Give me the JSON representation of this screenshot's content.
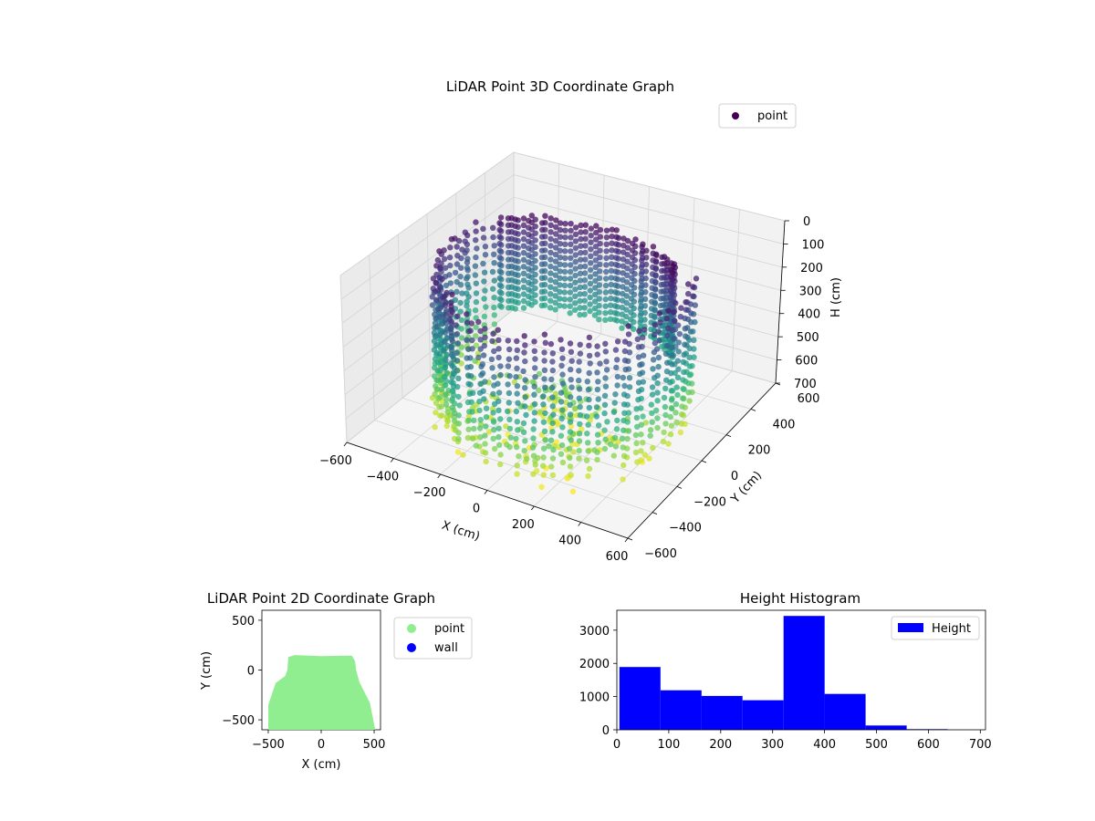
{
  "chart_data": [
    {
      "type": "scatter3d",
      "title": "LiDAR Point 3D Coordinate Graph",
      "xlabel": "X (cm)",
      "ylabel": "Y (cm)",
      "zlabel": "H (cm)",
      "xlim": [
        -600,
        600
      ],
      "ylim": [
        -600,
        600
      ],
      "zlim": [
        0,
        700
      ],
      "z_axis_inverted": true,
      "xticks": [
        "−600",
        "−400",
        "−200",
        "0",
        "200",
        "400",
        "600"
      ],
      "yticks": [
        "−600",
        "−400",
        "−200",
        "0",
        "200",
        "400",
        "600"
      ],
      "zticks": [
        "0",
        "100",
        "200",
        "300",
        "400",
        "500",
        "600",
        "700"
      ],
      "colormap": "viridis",
      "legend": {
        "label": "point",
        "position": "top-right",
        "marker_color": "#440154"
      },
      "grid": true,
      "description_of_points": "dense cylindrical/horseshoe shell of points: vertical columns along a ring of radius ~500 cm, heights 0-700 cm, colored by height"
    },
    {
      "type": "scatter",
      "title": "LiDAR Point 2D Coordinate Graph",
      "xlabel": "X (cm)",
      "ylabel": "Y (cm)",
      "xlim": [
        -560,
        560
      ],
      "ylim": [
        -600,
        600
      ],
      "xticks": [
        "−500",
        "0",
        "500"
      ],
      "yticks": [
        "−500",
        "0",
        "500"
      ],
      "series": [
        {
          "name": "point",
          "color": "#90ee90",
          "region": "filled blob x:-500..500, y:-600..150"
        },
        {
          "name": "wall",
          "color": "#0000ff",
          "values": []
        }
      ],
      "legend": {
        "position": "outside-right"
      }
    },
    {
      "type": "bar",
      "title": "Height Histogram",
      "xlabel": "",
      "ylabel": "",
      "series_name": "Height",
      "color": "#0000ff",
      "bin_edges": [
        5,
        84,
        163,
        242,
        321,
        400,
        479,
        558,
        637
      ],
      "values": [
        1890,
        1190,
        1020,
        890,
        3430,
        1080,
        130,
        20
      ],
      "xlim": [
        0,
        710
      ],
      "ylim": [
        0,
        3600
      ],
      "xticks": [
        "0",
        "100",
        "200",
        "300",
        "400",
        "500",
        "600",
        "700"
      ],
      "yticks": [
        "0",
        "1000",
        "2000",
        "3000"
      ],
      "legend": {
        "position": "top-right"
      }
    }
  ]
}
